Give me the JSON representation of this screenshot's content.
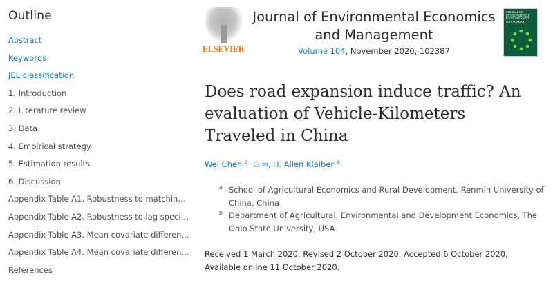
{
  "sidebar": {
    "title": "Outline",
    "items": [
      {
        "label": "Abstract",
        "link": true
      },
      {
        "label": "Keywords",
        "link": true
      },
      {
        "label": "JEL classification",
        "link": true
      },
      {
        "label": "1. Introduction",
        "link": false
      },
      {
        "label": "2. Literature review",
        "link": false
      },
      {
        "label": "3. Data",
        "link": false
      },
      {
        "label": "4. Empirical strategy",
        "link": false
      },
      {
        "label": "5. Estimation results",
        "link": false
      },
      {
        "label": "6. Discussion",
        "link": false
      },
      {
        "label": "Appendix Table A1. Robustness to matching speci...",
        "link": false
      },
      {
        "label": "Appendix Table A2. Robustness to lag specification",
        "link": false
      },
      {
        "label": "Appendix Table A3. Mean covariate differences bet...",
        "link": false
      },
      {
        "label": "Appendix Table A4. Mean covariate differences bet...",
        "link": false
      },
      {
        "label": "References",
        "link": false
      }
    ]
  },
  "publisher": {
    "logo_text": "ELSEVIER"
  },
  "journal": {
    "title": "Journal of Environmental Economics and Management",
    "volume_link": "Volume 104",
    "meta_rest": ", November 2020, 102387",
    "cover_text": "JOURNAL OF ENVIRONMENTAL ECONOMICS AND MANAGEMENT"
  },
  "article": {
    "title": "Does road expansion induce traffic? An evaluation of Vehicle-Kilometers Traveled in China",
    "authors": [
      {
        "name": "Wei Chen",
        "sup": "a",
        "icons": [
          "person-icon",
          "email-icon"
        ]
      },
      {
        "name": "H. Allen Klaiber",
        "sup": "b"
      }
    ],
    "affiliations": [
      {
        "sup": "a",
        "text": "School of Agricultural Economics and Rural Development, Renmin University of China, China"
      },
      {
        "sup": "b",
        "text": "Department of Agricultural, Environmental and Development Economics, The Ohio State University, USA"
      }
    ],
    "dates": "Received 1 March 2020, Revised 2 October 2020, Accepted 6 October 2020, Available online 11 October 2020."
  },
  "colors": {
    "link": "#0c7dbb",
    "brand": "#f47920",
    "text": "#505050"
  }
}
